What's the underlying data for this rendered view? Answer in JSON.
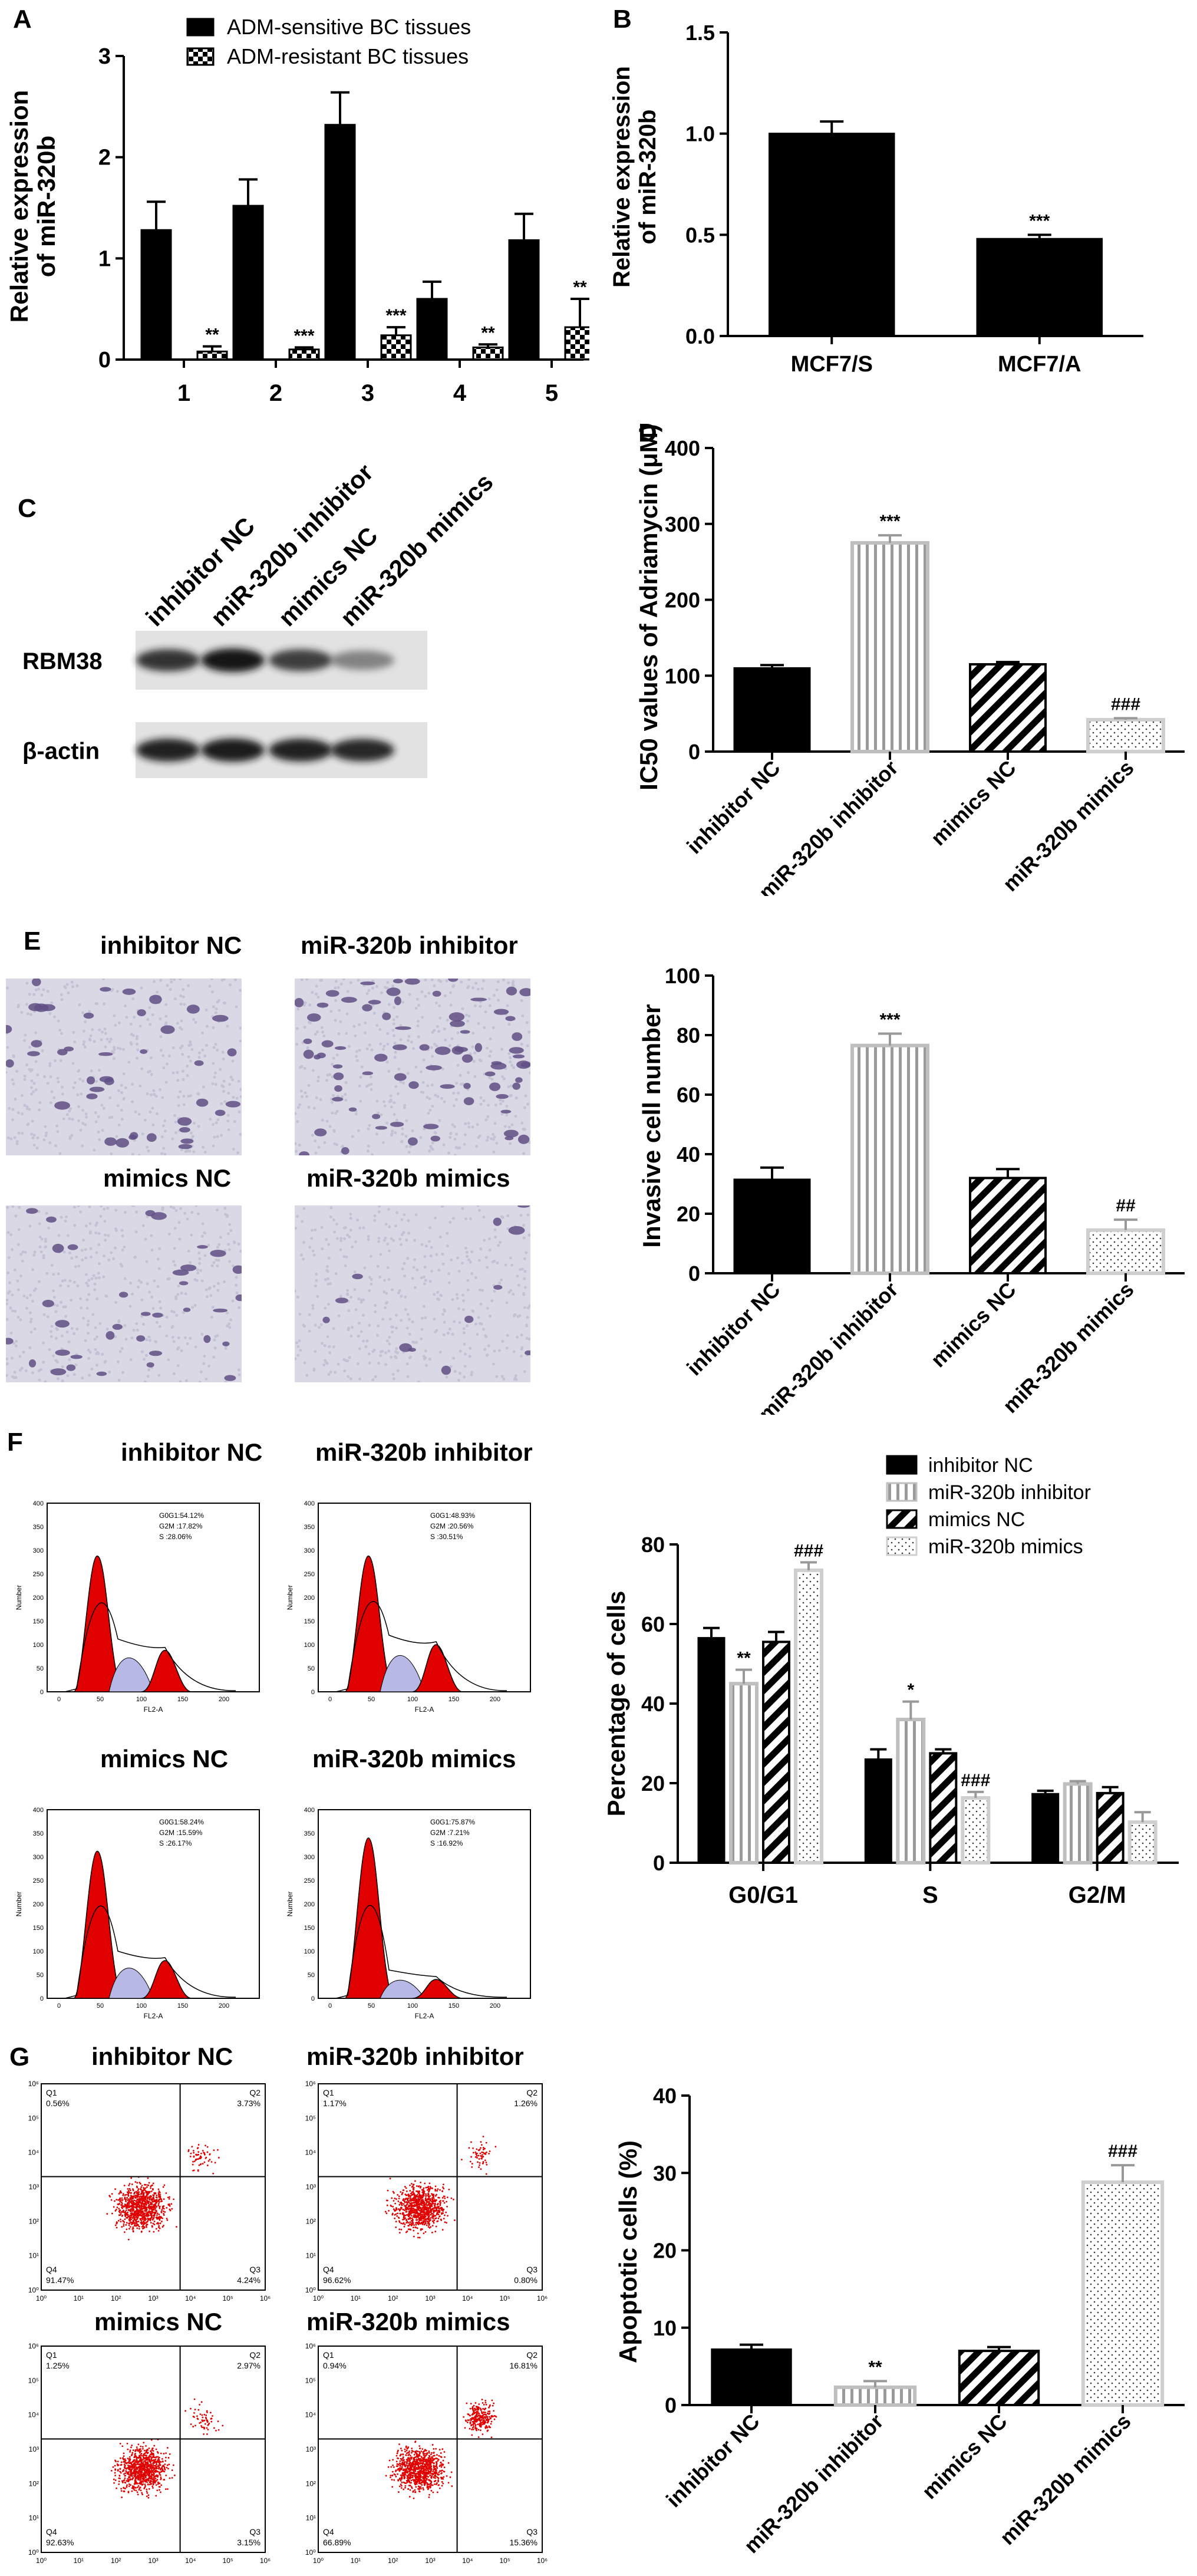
{
  "panels": {
    "A": {
      "label": "A"
    },
    "B": {
      "label": "B"
    },
    "C": {
      "label": "C"
    },
    "D": {
      "label": "D"
    },
    "E": {
      "label": "E"
    },
    "F": {
      "label": "F"
    },
    "G": {
      "label": "G"
    }
  },
  "colors": {
    "black": "#000000",
    "grey": "#bfbfbf",
    "red": "#e00000"
  },
  "chart_data": [
    {
      "id": "A",
      "type": "bar",
      "categories": [
        "1",
        "2",
        "3",
        "4",
        "5"
      ],
      "series": [
        {
          "name": "ADM-sensitive BC tissues",
          "values": [
            1.28,
            1.52,
            2.32,
            0.6,
            1.18
          ],
          "errors": [
            0.28,
            0.26,
            0.32,
            0.17,
            0.26
          ],
          "pattern": "solid"
        },
        {
          "name": "ADM-resistant BC tissues",
          "values": [
            0.08,
            0.1,
            0.24,
            0.12,
            0.32
          ],
          "errors": [
            0.05,
            0.02,
            0.08,
            0.03,
            0.28
          ],
          "pattern": "check"
        }
      ],
      "annotations": [
        "**",
        "***",
        "***",
        "**",
        "**"
      ],
      "ylabel": "Relative  expression of miR-320b",
      "ylim": [
        0,
        3
      ],
      "yticks": [
        "0",
        "1",
        "2",
        "3"
      ]
    },
    {
      "id": "B",
      "type": "bar",
      "categories": [
        "MCF7/S",
        "MCF7/A"
      ],
      "values": [
        1.0,
        0.48
      ],
      "errors": [
        0.06,
        0.02
      ],
      "annotations": [
        "",
        "***"
      ],
      "ylabel": "Relative  expression of miR-320b",
      "ylim": [
        0,
        1.5
      ],
      "yticks": [
        "0.0",
        "0.5",
        "1.0",
        "1.5"
      ]
    },
    {
      "id": "D",
      "type": "bar",
      "categories": [
        "inhibitor NC",
        "miR-320b inhibitor",
        "mimics NC",
        "miR-320b mimics"
      ],
      "values": [
        110,
        275,
        115,
        42
      ],
      "errors": [
        4,
        10,
        3,
        2
      ],
      "annotations": [
        "",
        "***",
        "",
        "###"
      ],
      "ylabel": "IC50 values of  Adriamycin (μM)",
      "ylim": [
        0,
        400
      ],
      "yticks": [
        "0",
        "100",
        "200",
        "300",
        "400"
      ]
    },
    {
      "id": "E",
      "type": "bar",
      "categories": [
        "inhibitor NC",
        "miR-320b inhibitor",
        "mimics NC",
        "miR-320b mimics"
      ],
      "values": [
        31.5,
        76.5,
        32,
        14.5
      ],
      "errors": [
        4,
        4,
        3,
        3.5
      ],
      "annotations": [
        "",
        "***",
        "",
        "##"
      ],
      "ylabel": "Invasive cell number",
      "ylim": [
        0,
        100
      ],
      "yticks": [
        "0",
        "20",
        "40",
        "60",
        "80",
        "100"
      ]
    },
    {
      "id": "F",
      "type": "bar",
      "categories": [
        "G0/G1",
        "S",
        "G2/M"
      ],
      "series": [
        {
          "name": "inhibitor NC",
          "values": [
            56.5,
            26,
            17.3
          ],
          "errors": [
            2.5,
            2.5,
            0.8
          ],
          "pattern": "solid"
        },
        {
          "name": "miR-320b inhibitor",
          "values": [
            45,
            36,
            19.8
          ],
          "errors": [
            3.5,
            4.5,
            0.7
          ],
          "pattern": "vline"
        },
        {
          "name": "mimics NC",
          "values": [
            55.5,
            27.5,
            17.5
          ],
          "errors": [
            2.5,
            1,
            1.5
          ],
          "pattern": "diag"
        },
        {
          "name": "miR-320b mimics",
          "values": [
            73.5,
            16.3,
            10.2
          ],
          "errors": [
            2,
            1.5,
            2.5
          ],
          "pattern": "dots"
        }
      ],
      "annotations": [
        [
          "",
          "**",
          "",
          "###"
        ],
        [
          "",
          "*",
          "",
          "###"
        ],
        [
          "",
          "",
          "",
          ""
        ]
      ],
      "ylabel": "Percentage of cells",
      "ylim": [
        0,
        80
      ],
      "yticks": [
        "0",
        "20",
        "40",
        "60",
        "80"
      ]
    },
    {
      "id": "G",
      "type": "bar",
      "categories": [
        "inhibitor NC",
        "miR-320b inhibitor",
        "mimics NC",
        "miR-320b mimics"
      ],
      "values": [
        7.2,
        2.3,
        7.0,
        28.8
      ],
      "errors": [
        0.6,
        0.8,
        0.5,
        2.2
      ],
      "annotations": [
        "",
        "**",
        "",
        "###"
      ],
      "ylabel": "Apoptotic cells (%)",
      "ylim": [
        0,
        40
      ],
      "yticks": [
        "0",
        "10",
        "20",
        "30",
        "40"
      ]
    }
  ],
  "western": {
    "lanes": [
      "inhibitor NC",
      "miR-320b inhibitor",
      "mimics NC",
      "miR-320b mimics"
    ],
    "rows": [
      {
        "name": "RBM38",
        "intensity": [
          0.8,
          1.0,
          0.75,
          0.4
        ]
      },
      {
        "name": "β-actin",
        "intensity": [
          0.9,
          0.95,
          0.9,
          0.85
        ]
      }
    ]
  },
  "invasion_images": {
    "titles": [
      "inhibitor NC",
      "miR-320b inhibitor",
      "mimics NC",
      "miR-320b mimics"
    ]
  },
  "flow_cycle": {
    "titles": [
      "inhibitor NC",
      "miR-320b inhibitor",
      "mimics NC",
      "miR-320b mimics"
    ],
    "stats": [
      [
        "G0G1:54.12%",
        "G2M :17.82%",
        "S    :28.06%"
      ],
      [
        "G0G1:48.93%",
        "G2M :20.56%",
        "S    :30.51%"
      ],
      [
        "G0G1:58.24%",
        "G2M :15.59%",
        "S    :26.17%"
      ],
      [
        "G0G1:75.87%",
        "G2M :7.21%",
        "S    :16.92%"
      ]
    ],
    "xlabel": "FL2-A",
    "ylabel": "Number",
    "xticks": [
      "0",
      "50",
      "100",
      "150",
      "200"
    ],
    "yticks": [
      "0",
      "50",
      "100",
      "150",
      "200",
      "250",
      "300",
      "350",
      "400"
    ]
  },
  "flow_apoptosis": {
    "titles": [
      "inhibitor NC",
      "miR-320b inhibitor",
      "mimics NC",
      "miR-320b mimics"
    ],
    "quadrants": [
      [
        "Q1",
        "Q2",
        "Q3",
        "Q4"
      ],
      [
        "Q1",
        "Q2",
        "Q3",
        "Q4"
      ],
      [
        "Q1",
        "Q2",
        "Q3",
        "Q4"
      ],
      [
        "Q1",
        "Q2",
        "Q3",
        "Q4"
      ]
    ],
    "values": [
      [
        "0.56%",
        "3.73%",
        "4.24%",
        "91.47%"
      ],
      [
        "1.17%",
        "1.26%",
        "0.80%",
        "96.62%"
      ],
      [
        "1.25%",
        "2.97%",
        "3.15%",
        "92.63%"
      ],
      [
        "0.94%",
        "16.81%",
        "15.36%",
        "66.89%"
      ]
    ],
    "ticks": [
      "10⁰",
      "10¹",
      "10²",
      "10³",
      "10⁴",
      "10⁵",
      "10⁶"
    ]
  }
}
